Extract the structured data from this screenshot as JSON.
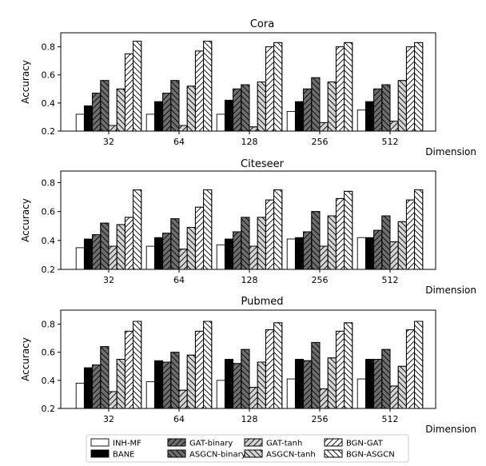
{
  "chart_data": [
    {
      "type": "bar",
      "title": "Cora",
      "xlabel": "Dimension",
      "ylabel": "Accuracy",
      "ylim": [
        0.2,
        0.9
      ],
      "yticks": [
        0.2,
        0.4,
        0.6,
        0.8
      ],
      "categories": [
        "32",
        "64",
        "128",
        "256",
        "512"
      ],
      "series": [
        {
          "name": "INH-MF",
          "values": [
            0.32,
            0.32,
            0.32,
            0.34,
            0.35
          ]
        },
        {
          "name": "BANE",
          "values": [
            0.38,
            0.41,
            0.42,
            0.41,
            0.41
          ]
        },
        {
          "name": "GAT-binary",
          "values": [
            0.47,
            0.47,
            0.5,
            0.5,
            0.5
          ]
        },
        {
          "name": "ASGCN-binary",
          "values": [
            0.56,
            0.56,
            0.53,
            0.58,
            0.53
          ]
        },
        {
          "name": "GAT-tanh",
          "values": [
            0.24,
            0.24,
            0.23,
            0.26,
            0.27
          ]
        },
        {
          "name": "ASGCN-tanh",
          "values": [
            0.5,
            0.52,
            0.55,
            0.55,
            0.56
          ]
        },
        {
          "name": "BGN-GAT",
          "values": [
            0.75,
            0.77,
            0.8,
            0.8,
            0.8
          ]
        },
        {
          "name": "BGN-ASGCN",
          "values": [
            0.84,
            0.84,
            0.83,
            0.83,
            0.83
          ]
        }
      ]
    },
    {
      "type": "bar",
      "title": "Citeseer",
      "xlabel": "Dimension",
      "ylabel": "Accuracy",
      "ylim": [
        0.2,
        0.88
      ],
      "yticks": [
        0.2,
        0.4,
        0.6,
        0.8
      ],
      "categories": [
        "32",
        "64",
        "128",
        "256",
        "512"
      ],
      "series": [
        {
          "name": "INH-MF",
          "values": [
            0.35,
            0.36,
            0.37,
            0.41,
            0.42
          ]
        },
        {
          "name": "BANE",
          "values": [
            0.41,
            0.42,
            0.41,
            0.42,
            0.42
          ]
        },
        {
          "name": "GAT-binary",
          "values": [
            0.44,
            0.45,
            0.46,
            0.46,
            0.47
          ]
        },
        {
          "name": "ASGCN-binary",
          "values": [
            0.52,
            0.55,
            0.56,
            0.6,
            0.57
          ]
        },
        {
          "name": "GAT-tanh",
          "values": [
            0.36,
            0.34,
            0.36,
            0.36,
            0.39
          ]
        },
        {
          "name": "ASGCN-tanh",
          "values": [
            0.51,
            0.49,
            0.56,
            0.57,
            0.53
          ]
        },
        {
          "name": "BGN-GAT",
          "values": [
            0.56,
            0.63,
            0.68,
            0.69,
            0.68
          ]
        },
        {
          "name": "BGN-ASGCN",
          "values": [
            0.75,
            0.75,
            0.75,
            0.74,
            0.75
          ]
        }
      ]
    },
    {
      "type": "bar",
      "title": "Pubmed",
      "xlabel": "Dimension",
      "ylabel": "Accuracy",
      "ylim": [
        0.2,
        0.9
      ],
      "yticks": [
        0.2,
        0.4,
        0.6,
        0.8
      ],
      "categories": [
        "32",
        "64",
        "128",
        "256",
        "512"
      ],
      "series": [
        {
          "name": "INH-MF",
          "values": [
            0.38,
            0.39,
            0.4,
            0.41,
            0.41
          ]
        },
        {
          "name": "BANE",
          "values": [
            0.49,
            0.54,
            0.55,
            0.55,
            0.55
          ]
        },
        {
          "name": "GAT-binary",
          "values": [
            0.51,
            0.53,
            0.52,
            0.54,
            0.55
          ]
        },
        {
          "name": "ASGCN-binary",
          "values": [
            0.64,
            0.6,
            0.62,
            0.67,
            0.62
          ]
        },
        {
          "name": "GAT-tanh",
          "values": [
            0.32,
            0.33,
            0.35,
            0.34,
            0.36
          ]
        },
        {
          "name": "ASGCN-tanh",
          "values": [
            0.55,
            0.58,
            0.53,
            0.56,
            0.5
          ]
        },
        {
          "name": "BGN-GAT",
          "values": [
            0.75,
            0.75,
            0.76,
            0.75,
            0.76
          ]
        },
        {
          "name": "BGN-ASGCN",
          "values": [
            0.82,
            0.82,
            0.81,
            0.81,
            0.82
          ]
        }
      ]
    }
  ],
  "legend": {
    "placement": "bottom-center",
    "entries": [
      "INH-MF",
      "BANE",
      "GAT-binary",
      "ASGCN-binary",
      "GAT-tanh",
      "ASGCN-tanh",
      "BGN-GAT",
      "BGN-ASGCN"
    ]
  },
  "series_styles": [
    {
      "fill": "#ffffff",
      "hatch": "none"
    },
    {
      "fill": "#000000",
      "hatch": "none"
    },
    {
      "fill": "#6e6e6e",
      "hatch": "diag-up"
    },
    {
      "fill": "#6e6e6e",
      "hatch": "diag-down"
    },
    {
      "fill": "#d4d4d4",
      "hatch": "diag-up"
    },
    {
      "fill": "#d4d4d4",
      "hatch": "diag-down"
    },
    {
      "fill": "#ffffff",
      "hatch": "diag-up"
    },
    {
      "fill": "#ffffff",
      "hatch": "diag-down"
    }
  ]
}
